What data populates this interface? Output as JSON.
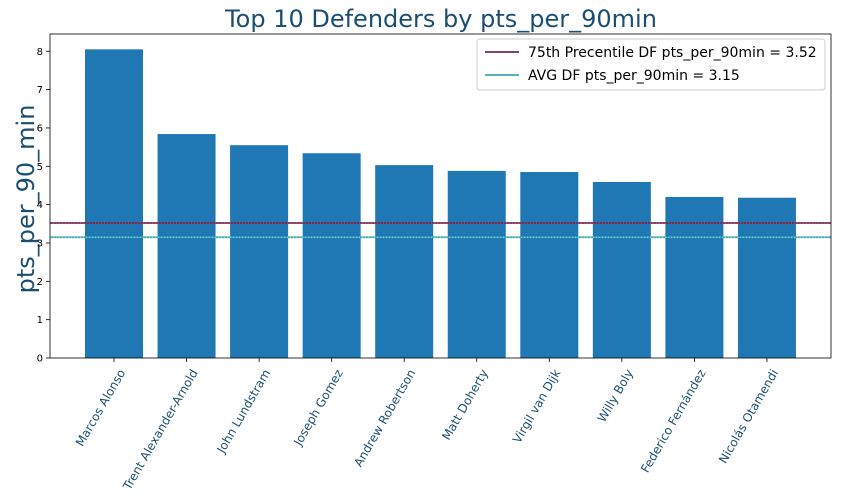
{
  "chart_data": {
    "type": "bar",
    "title": "Top 10 Defenders by pts_per_90min",
    "xlabel": "",
    "ylabel": "pts_per_90_min",
    "categories": [
      "Marcos Alonso",
      "Trent Alexander-Arnold",
      "John Lundstram",
      "Joseph Gomez",
      "Andrew Robertson",
      "Matt Doherty",
      "Virgil van Dijk",
      "Willy Boly",
      "Federico Fernández",
      "Nicolás Otamendi"
    ],
    "values": [
      8.05,
      5.84,
      5.55,
      5.34,
      5.03,
      4.88,
      4.85,
      4.59,
      4.2,
      4.18
    ],
    "ylim": [
      0,
      8.45
    ],
    "yticks": [
      "0",
      "1",
      "2",
      "3",
      "4",
      "5",
      "6",
      "7",
      "8"
    ],
    "grid": false,
    "legend_position": "top-right",
    "reference_lines": [
      {
        "label": "75th Precentile DF pts_per_90min = 3.52",
        "value": 3.52,
        "color": "#6b2d5c"
      },
      {
        "label": "AVG DF pts_per_90min = 3.15",
        "value": 3.15,
        "color": "#3aa8b5"
      }
    ],
    "colors": {
      "bar": "#1f77b4",
      "title": "#1b4f72",
      "tick_label": "#1b4f72",
      "overlay_dotted": "#d9534f"
    }
  }
}
